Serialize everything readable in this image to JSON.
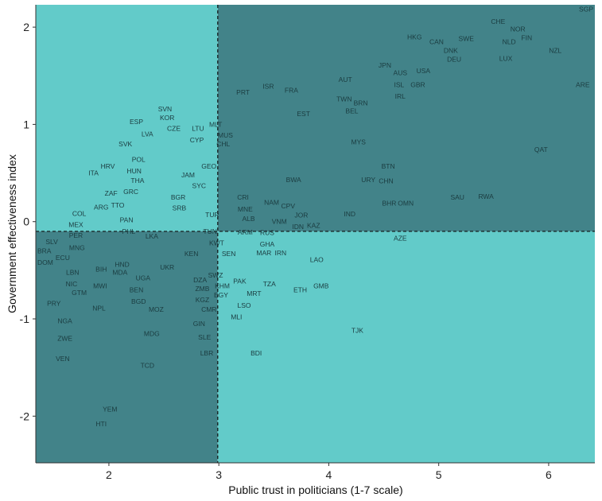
{
  "chart_data": {
    "type": "scatter",
    "title": "",
    "xlabel": "Public trust in politicians (1-7 scale)",
    "ylabel": "Government effectiveness index",
    "xlim": [
      1.335,
      6.42
    ],
    "ylim": [
      -2.48,
      2.23
    ],
    "xticks": [
      2,
      3,
      4,
      5,
      6
    ],
    "yticks": [
      -2,
      -1,
      0,
      1,
      2
    ],
    "x_threshold": 2.99,
    "y_threshold": -0.1,
    "colors": {
      "light_quadrant": "#62cbc9",
      "dark_quadrant": "#428389",
      "label": "#1b3c40"
    },
    "grid": false,
    "points": [
      {
        "label": "SGP",
        "x": 6.45,
        "y": 2.24
      },
      {
        "label": "CHE",
        "x": 5.54,
        "y": 2.06
      },
      {
        "label": "NOR",
        "x": 5.72,
        "y": 1.98
      },
      {
        "label": "FIN",
        "x": 5.8,
        "y": 1.93
      },
      {
        "label": "HKG",
        "x": 4.78,
        "y": 1.9
      },
      {
        "label": "CAN",
        "x": 4.98,
        "y": 1.85
      },
      {
        "label": "DNK",
        "x": 5.11,
        "y": 1.8
      },
      {
        "label": "SWE",
        "x": 5.25,
        "y": 1.84
      },
      {
        "label": "NLD",
        "x": 5.64,
        "y": 1.85
      },
      {
        "label": "DEU",
        "x": 5.14,
        "y": 1.71
      },
      {
        "label": "NZL",
        "x": 6.06,
        "y": 1.76
      },
      {
        "label": "LUX",
        "x": 5.61,
        "y": 1.68
      },
      {
        "label": "JPN",
        "x": 4.51,
        "y": 1.61
      },
      {
        "label": "AUS",
        "x": 4.65,
        "y": 1.53
      },
      {
        "label": "USA",
        "x": 4.86,
        "y": 1.55
      },
      {
        "label": "ISL",
        "x": 4.64,
        "y": 1.45
      },
      {
        "label": "GBR",
        "x": 4.81,
        "y": 1.41
      },
      {
        "label": "AUT",
        "x": 4.15,
        "y": 1.46
      },
      {
        "label": "ARE",
        "x": 6.31,
        "y": 1.41
      },
      {
        "label": "IRL",
        "x": 4.65,
        "y": 1.29
      },
      {
        "label": "TWN",
        "x": 4.14,
        "y": 1.26
      },
      {
        "label": "BEL",
        "x": 4.21,
        "y": 1.18
      },
      {
        "label": "BRN",
        "x": 4.24,
        "y": 1.14
      },
      {
        "label": "PRT",
        "x": 3.22,
        "y": 1.33
      },
      {
        "label": "ISR",
        "x": 3.45,
        "y": 1.39
      },
      {
        "label": "FRA",
        "x": 3.66,
        "y": 1.35
      },
      {
        "label": "EST",
        "x": 3.77,
        "y": 1.11
      },
      {
        "label": "MUS",
        "x": 3.06,
        "y": 0.89
      },
      {
        "label": "CHL",
        "x": 3.04,
        "y": 0.84
      },
      {
        "label": "MYS",
        "x": 4.27,
        "y": 0.82
      },
      {
        "label": "QAT",
        "x": 5.93,
        "y": 0.74
      },
      {
        "label": "BTN",
        "x": 4.54,
        "y": 0.57
      },
      {
        "label": "BWA",
        "x": 3.68,
        "y": 0.43
      },
      {
        "label": "URY",
        "x": 4.36,
        "y": 0.43
      },
      {
        "label": "CHN",
        "x": 4.47,
        "y": 0.42
      },
      {
        "label": "SAU",
        "x": 5.17,
        "y": 0.25
      },
      {
        "label": "RWA",
        "x": 5.43,
        "y": 0.26
      },
      {
        "label": "CRI",
        "x": 3.22,
        "y": 0.25
      },
      {
        "label": "MNE",
        "x": 3.24,
        "y": 0.17
      },
      {
        "label": "NAM",
        "x": 3.48,
        "y": 0.2
      },
      {
        "label": "CPV",
        "x": 3.63,
        "y": 0.16
      },
      {
        "label": "BHR",
        "x": 4.55,
        "y": 0.19
      },
      {
        "label": "OMN",
        "x": 4.7,
        "y": 0.19
      },
      {
        "label": "JOR",
        "x": 3.75,
        "y": 0.11
      },
      {
        "label": "ALB",
        "x": 3.27,
        "y": 0.07
      },
      {
        "label": "IND",
        "x": 4.19,
        "y": 0.08
      },
      {
        "label": "TUR",
        "x": 2.94,
        "y": 0.07
      },
      {
        "label": "VNM",
        "x": 3.55,
        "y": 0.0
      },
      {
        "label": "IDN",
        "x": 3.72,
        "y": 0.03
      },
      {
        "label": "KAZ",
        "x": 3.76,
        "y": 0.0
      },
      {
        "label": "RUS",
        "x": 3.44,
        "y": -0.07
      },
      {
        "label": "ARM",
        "x": 3.24,
        "y": -0.11
      },
      {
        "label": "GHA",
        "x": 3.44,
        "y": -0.11
      },
      {
        "label": "AZE",
        "x": 4.65,
        "y": -0.17
      },
      {
        "label": "TUN",
        "x": 2.92,
        "y": -0.1
      },
      {
        "label": "KWT",
        "x": 2.98,
        "y": -0.18
      },
      {
        "label": "MAR",
        "x": 3.41,
        "y": -0.2
      },
      {
        "label": "IRN",
        "x": 3.46,
        "y": -0.2
      },
      {
        "label": "SEN",
        "x": 3.09,
        "y": -0.33
      },
      {
        "label": "KEN",
        "x": 2.75,
        "y": -0.33
      },
      {
        "label": "LAO",
        "x": 3.89,
        "y": -0.39
      },
      {
        "label": "SWZ",
        "x": 2.97,
        "y": -0.55
      },
      {
        "label": "DZA",
        "x": 2.83,
        "y": -0.6
      },
      {
        "label": "ZMB",
        "x": 2.85,
        "y": -0.65
      },
      {
        "label": "KHM",
        "x": 2.93,
        "y": -0.66
      },
      {
        "label": "EGY",
        "x": 3.02,
        "y": -0.63
      },
      {
        "label": "PAK",
        "x": 3.19,
        "y": -0.61
      },
      {
        "label": "TZA",
        "x": 3.46,
        "y": -0.64
      },
      {
        "label": "GMB",
        "x": 3.93,
        "y": -0.66
      },
      {
        "label": "ETH",
        "x": 3.74,
        "y": -0.7
      },
      {
        "label": "KGZ",
        "x": 2.85,
        "y": -0.72
      },
      {
        "label": "MRT",
        "x": 3.32,
        "y": -0.74
      },
      {
        "label": "CMR",
        "x": 2.91,
        "y": -0.82
      },
      {
        "label": "LSO",
        "x": 3.23,
        "y": -0.86
      },
      {
        "label": "MLI",
        "x": 3.16,
        "y": -0.94
      },
      {
        "label": "TJK",
        "x": 4.26,
        "y": -1.12
      },
      {
        "label": "UKR",
        "x": 2.53,
        "y": -0.47
      },
      {
        "label": "BIH",
        "x": 1.93,
        "y": -0.49
      },
      {
        "label": "MDA",
        "x": 2.05,
        "y": -0.52
      },
      {
        "label": "HND",
        "x": 2.12,
        "y": -0.52
      },
      {
        "label": "UGA",
        "x": 2.31,
        "y": -0.58
      },
      {
        "label": "BEN",
        "x": 2.25,
        "y": -0.66
      },
      {
        "label": "BGD",
        "x": 2.27,
        "y": -0.74
      },
      {
        "label": "MOZ",
        "x": 2.43,
        "y": -0.9
      },
      {
        "label": "NPL",
        "x": 1.91,
        "y": -0.89
      },
      {
        "label": "MWI",
        "x": 1.92,
        "y": -0.66
      },
      {
        "label": "LBN",
        "x": 1.67,
        "y": -0.52
      },
      {
        "label": "NIC",
        "x": 1.66,
        "y": -0.64
      },
      {
        "label": "GTM",
        "x": 1.73,
        "y": -0.65
      },
      {
        "label": "PRY",
        "x": 1.5,
        "y": -0.84
      },
      {
        "label": "NGA",
        "x": 1.6,
        "y": -1.02
      },
      {
        "label": "ZWE",
        "x": 1.6,
        "y": -1.2
      },
      {
        "label": "VEN",
        "x": 1.58,
        "y": -1.41
      },
      {
        "label": "MDG",
        "x": 2.39,
        "y": -1.15
      },
      {
        "label": "GIN",
        "x": 2.82,
        "y": -1.05
      },
      {
        "label": "SLE",
        "x": 2.87,
        "y": -1.19
      },
      {
        "label": "LBR",
        "x": 2.89,
        "y": -1.35
      },
      {
        "label": "BDI",
        "x": 3.34,
        "y": -1.35
      },
      {
        "label": "TCD",
        "x": 2.35,
        "y": -1.48
      },
      {
        "label": "YEM",
        "x": 2.01,
        "y": -1.93
      },
      {
        "label": "HTI",
        "x": 1.93,
        "y": -2.08
      },
      {
        "label": "MNG",
        "x": 1.71,
        "y": -0.27
      },
      {
        "label": "ECU",
        "x": 1.58,
        "y": -0.33
      },
      {
        "label": "BRA",
        "x": 1.33,
        "y": -0.3
      },
      {
        "label": "DOM",
        "x": 1.45,
        "y": -0.38
      },
      {
        "label": "SLV",
        "x": 1.48,
        "y": -0.37
      },
      {
        "label": "PER",
        "x": 1.7,
        "y": -0.14
      },
      {
        "label": "MEX",
        "x": 1.7,
        "y": -0.03
      },
      {
        "label": "COL",
        "x": 1.73,
        "y": -0.08
      },
      {
        "label": "LKA",
        "x": 2.39,
        "y": -0.15
      },
      {
        "label": "PAN",
        "x": 2.16,
        "y": 0.02
      },
      {
        "label": "PHL",
        "x": 2.18,
        "y": -0.06
      },
      {
        "label": "ARG",
        "x": 1.93,
        "y": 0.15
      },
      {
        "label": "ZAF",
        "x": 2.02,
        "y": 0.29
      },
      {
        "label": "TTO",
        "x": 2.08,
        "y": 0.25
      },
      {
        "label": "GRC",
        "x": 2.2,
        "y": 0.31
      },
      {
        "label": "THA",
        "x": 2.26,
        "y": 0.38
      },
      {
        "label": "ITA",
        "x": 1.86,
        "y": 0.5
      },
      {
        "label": "HRV",
        "x": 1.99,
        "y": 0.57
      },
      {
        "label": "HUN",
        "x": 2.23,
        "y": 0.52
      },
      {
        "label": "POL",
        "x": 2.27,
        "y": 0.64
      },
      {
        "label": "SVK",
        "x": 2.15,
        "y": 0.8
      },
      {
        "label": "LVA",
        "x": 2.35,
        "y": 0.9
      },
      {
        "label": "ESP",
        "x": 2.25,
        "y": 1.03
      },
      {
        "label": "SVN",
        "x": 2.51,
        "y": 1.16
      },
      {
        "label": "KOR",
        "x": 2.53,
        "y": 1.07
      },
      {
        "label": "CZE",
        "x": 2.59,
        "y": 1.0
      },
      {
        "label": "LTU",
        "x": 2.81,
        "y": 0.96
      },
      {
        "label": "MLT",
        "x": 2.92,
        "y": 1.0
      },
      {
        "label": "CYP",
        "x": 2.8,
        "y": 0.92
      },
      {
        "label": "GEO",
        "x": 2.91,
        "y": 0.57
      },
      {
        "label": "JAM",
        "x": 2.72,
        "y": 0.48
      },
      {
        "label": "SYC",
        "x": 2.82,
        "y": 0.41
      },
      {
        "label": "BGR",
        "x": 2.63,
        "y": 0.25
      },
      {
        "label": "SRB",
        "x": 2.64,
        "y": 0.18
      }
    ]
  }
}
